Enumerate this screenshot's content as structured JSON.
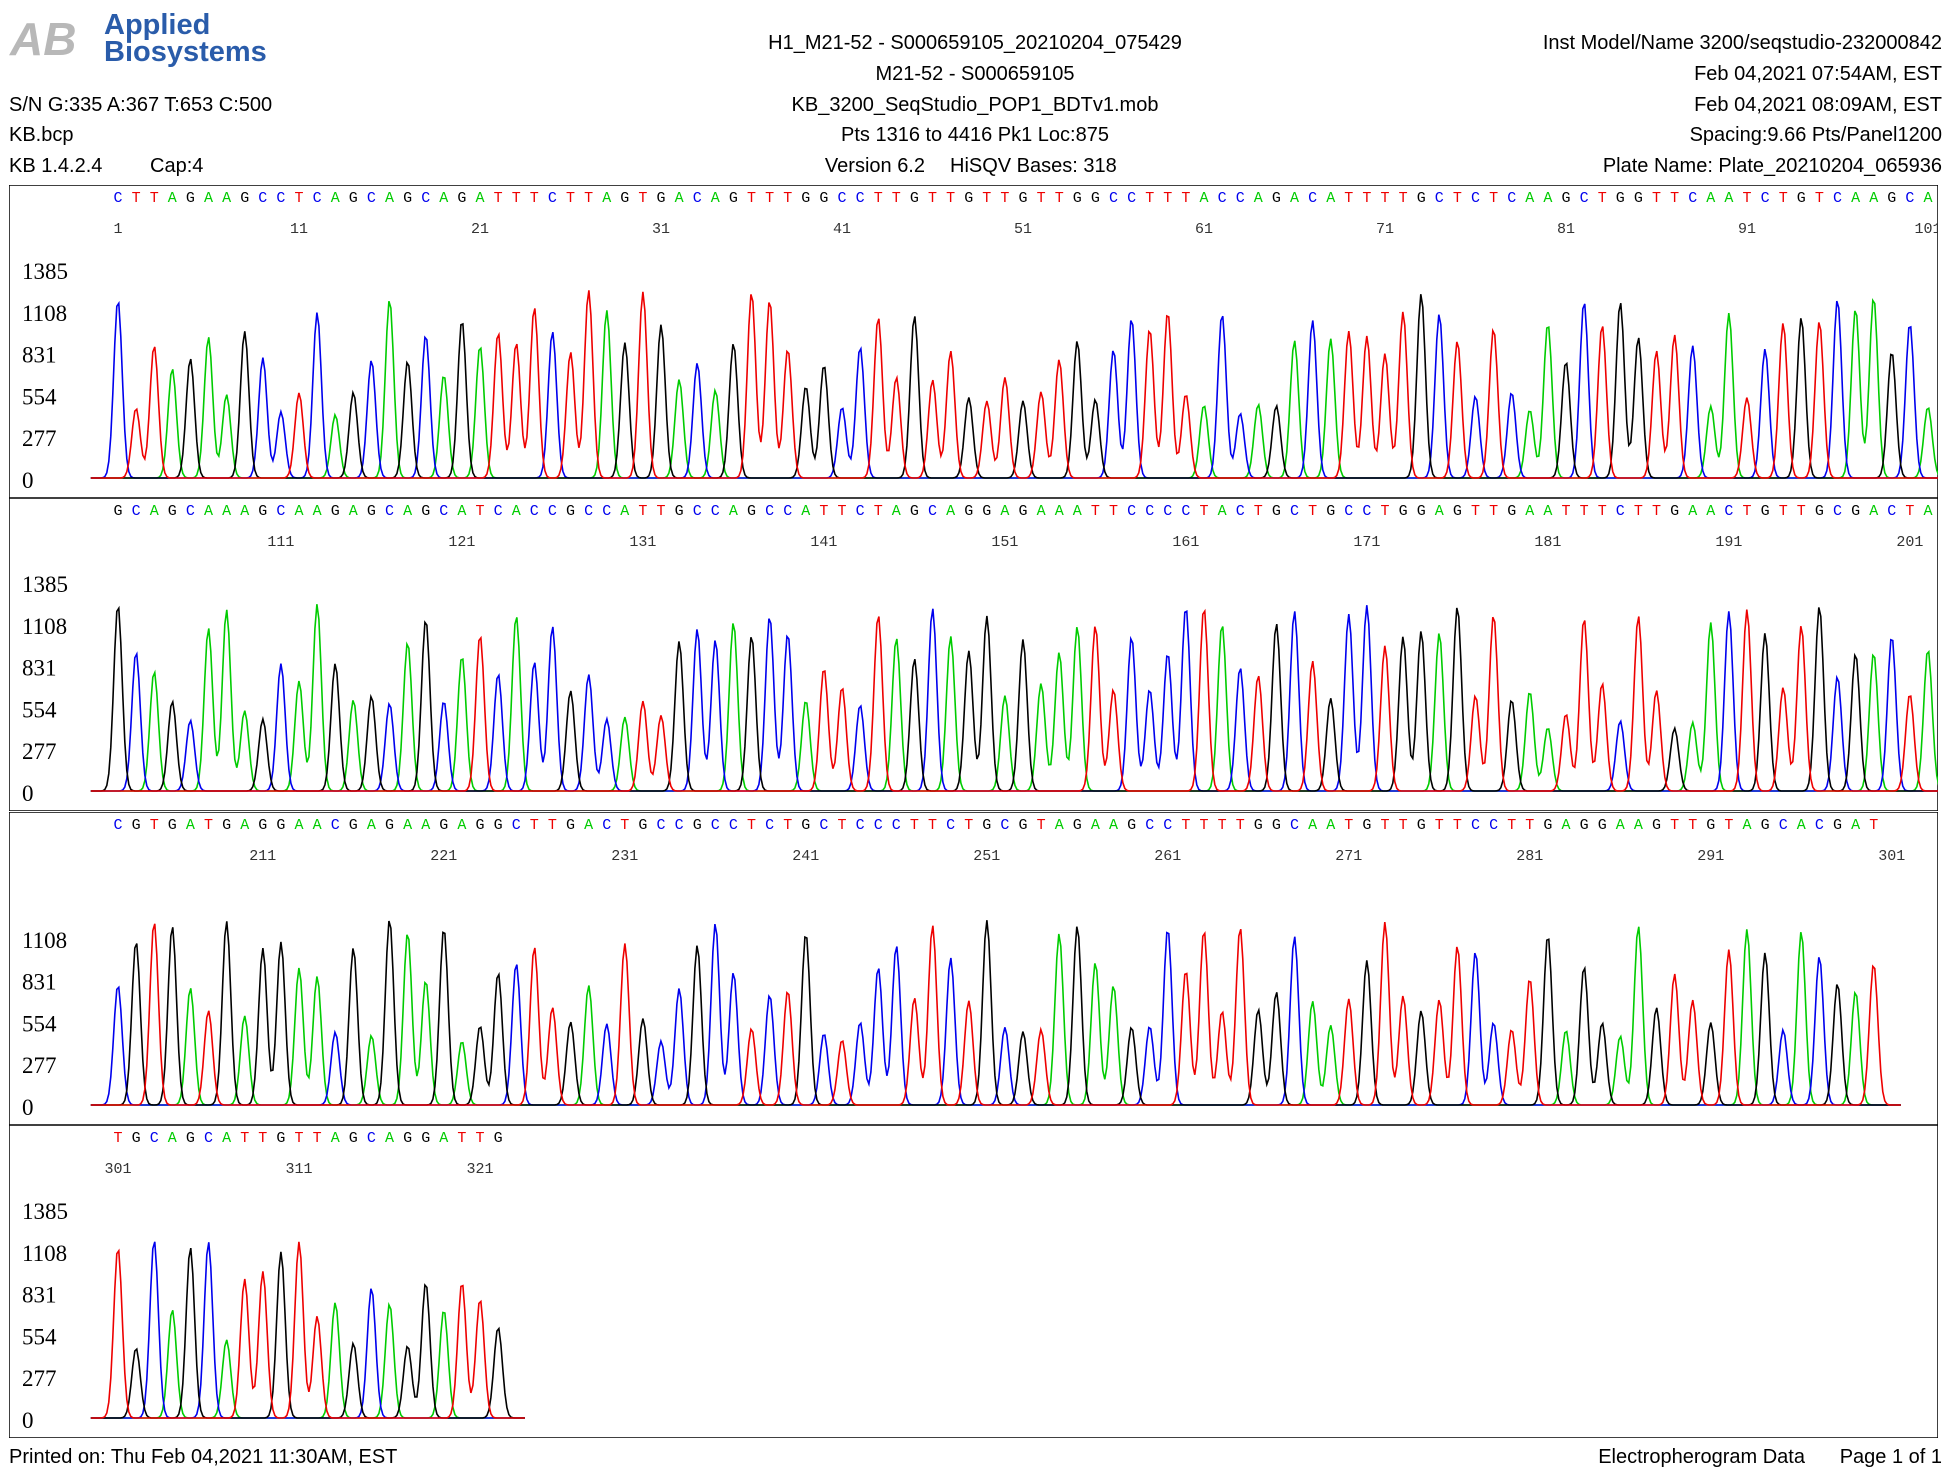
{
  "header": {
    "logo": [
      "Applied",
      "Biosystems"
    ],
    "left": [
      "S/N G:335 A:367 T:653 C:500",
      "KB.bcp",
      "KB 1.4.2.4",
      "Cap:4"
    ],
    "center": [
      "H1_M21-52 - S000659105_20210204_075429",
      "M21-52 - S000659105",
      "KB_3200_SeqStudio_POP1_BDTv1.mob",
      "Pts 1316 to 4416 Pk1 Loc:875",
      "Version 6.2",
      "HiSQV Bases: 318"
    ],
    "right": [
      "Inst Model/Name 3200/seqstudio-232000842",
      "Feb 04,2021 07:54AM, EST",
      "Feb 04,2021 08:09AM, EST",
      "Spacing:9.66  Pts/Panel1200",
      "Plate Name: Plate_20210204_065936"
    ]
  },
  "panels": [
    {
      "sequence": "CTTAGAAGCCTCAGCAGCAGATTTCTTAGTGACAGTTTGGCCTTGTTGTTGTTGGCCTTTACCAGACATTTTGCTCTCAAGCTGGTTCAATCTGTCAAGCA",
      "positions": [
        1,
        11,
        21,
        31,
        41,
        51,
        61,
        71,
        81,
        91,
        101
      ],
      "yticks": [
        0,
        277,
        554,
        831,
        1108,
        1385
      ]
    },
    {
      "sequence": "GCAGCAAAGCAAGAGCAGCATCACCGCCATTGCCAGCCATTCTAGCAGGAGAAATTCCCCTACTGCTGCCTGGAGTTGAATTTCTTGAACTGTTGCGACTA",
      "positions": [
        111,
        121,
        131,
        141,
        151,
        161,
        171,
        181,
        191,
        201
      ],
      "yticks": [
        0,
        277,
        554,
        831,
        1108,
        1385
      ]
    },
    {
      "sequence": "CGTGATGAGGAACGAGAAGAGGCTTGACTGCCGCCTCTGCTCCCTTCTGCGTAGAAGCCTTTTGGCAATGTTGTTCCTTGAGGAAGTTGTAGCACGAT",
      "positions": [
        211,
        221,
        231,
        241,
        251,
        261,
        271,
        281,
        291,
        301
      ],
      "yticks": [
        0,
        277,
        554,
        831,
        1108
      ]
    },
    {
      "sequence": "TGCAGCATTGTTAGCAGGATTG",
      "positions": [
        301,
        311,
        321
      ],
      "yticks": [
        0,
        277,
        554,
        831,
        1108,
        1385
      ]
    }
  ],
  "footer": {
    "left": "Printed on: Thu Feb 04,2021 11:30AM, EST",
    "right": [
      "Electropherogram Data",
      "Page 1 of 1"
    ]
  }
}
